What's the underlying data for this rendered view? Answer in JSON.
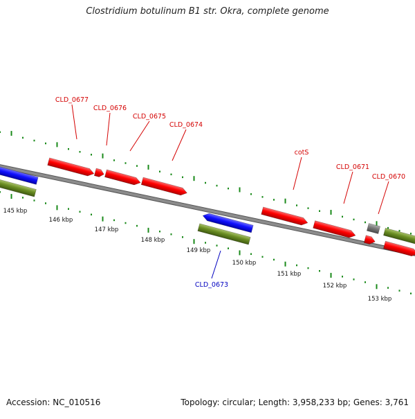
{
  "title": "Clostridium botulinum B1 str. Okra, complete genome",
  "footer": {
    "accession": "Accession: NC_010516",
    "summary": "Topology: circular; Length: 3,958,233 bp; Genes: 3,761"
  },
  "scale_labels": [
    "145 kbp",
    "146 kbp",
    "147 kbp",
    "148 kbp",
    "149 kbp",
    "150 kbp",
    "151 kbp",
    "152 kbp",
    "153 kbp"
  ],
  "gene_labels": [
    {
      "text": "CLD_0677",
      "color": "#d40000"
    },
    {
      "text": "CLD_0676",
      "color": "#d40000"
    },
    {
      "text": "CLD_0675",
      "color": "#d40000"
    },
    {
      "text": "CLD_0674",
      "color": "#d40000"
    },
    {
      "text": "cotS",
      "color": "#d40000"
    },
    {
      "text": "CLD_0671",
      "color": "#d40000"
    },
    {
      "text": "CLD_0670",
      "color": "#d40000"
    },
    {
      "text": "CLD_0673",
      "color": "#0000c0"
    }
  ],
  "colors": {
    "cds_red": "#ff0000",
    "cds_blue": "#1010ff",
    "gene_green": "#6b8e23",
    "unknown_grey": "#7a7a7a",
    "backbone": "#8c8c8c",
    "tick": "#1a8a1a"
  }
}
